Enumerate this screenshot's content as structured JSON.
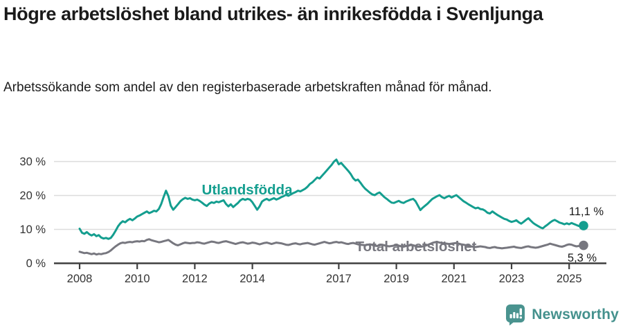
{
  "header": {
    "title": "Högre arbetslöshet bland utrikes- än inrikesfödda i Svenljunga",
    "subtitle": "Arbetssökande som andel av den registerbaserade arbetskraften månad för månad."
  },
  "footer": {
    "brand": "Newsworthy",
    "logo_icon": "newsworthy-speech-bubble-bar-chart-icon"
  },
  "colors": {
    "accent_teal": "#149e8f",
    "series_gray": "#77777f",
    "grid": "#dcdcdc",
    "axis": "#3f3f3f",
    "tick_text": "#333333",
    "end_label_text": "#1a1a1a",
    "logo_teal": "#4a938f"
  },
  "chart_data": {
    "type": "line",
    "title": "Högre arbetslöshet bland utrikes- än inrikesfödda i Svenljunga",
    "subtitle": "Arbetssökande som andel av den registerbaserade arbetskraften månad för månad.",
    "xlabel": "",
    "ylabel": "",
    "x_unit": "month",
    "x_start": "2008-01",
    "x_end": "2025-07",
    "frequency": "monthly",
    "ylim": [
      0,
      32
    ],
    "grid": "horizontal",
    "legend_position": "inline-labels",
    "y_ticks": [
      0,
      10,
      20,
      30
    ],
    "y_tick_labels": [
      "0 %",
      "10 %",
      "20 %",
      "30 %"
    ],
    "x_ticks": [
      2008,
      2010,
      2012,
      2014,
      2017,
      2019,
      2021,
      2023,
      2025
    ],
    "series": [
      {
        "id": "utlandsfodda",
        "name": "Utlandsfödda",
        "color": "#149e8f",
        "end_value": 11.1,
        "end_label": "11,1 %",
        "values": [
          10.2,
          9.0,
          8.7,
          9.2,
          8.6,
          8.2,
          8.6,
          8.0,
          8.3,
          7.6,
          7.3,
          7.5,
          7.2,
          7.5,
          8.4,
          9.6,
          10.9,
          11.8,
          12.4,
          12.1,
          12.7,
          13.1,
          12.7,
          13.2,
          13.8,
          14.1,
          14.5,
          14.9,
          15.3,
          14.8,
          15.1,
          15.5,
          15.3,
          16.0,
          17.5,
          19.5,
          21.4,
          19.8,
          17.0,
          15.8,
          16.6,
          17.4,
          18.3,
          18.9,
          19.3,
          19.0,
          19.2,
          18.8,
          18.6,
          18.8,
          18.4,
          17.9,
          17.3,
          16.9,
          17.6,
          18.0,
          17.8,
          18.2,
          18.0,
          18.3,
          18.6,
          17.5,
          16.8,
          17.4,
          16.6,
          17.2,
          17.8,
          18.6,
          19.0,
          18.7,
          19.0,
          18.8,
          18.0,
          16.9,
          15.8,
          16.8,
          18.2,
          18.7,
          19.0,
          18.6,
          18.9,
          19.2,
          18.8,
          19.1,
          19.5,
          19.8,
          20.2,
          19.9,
          20.3,
          20.7,
          21.0,
          21.4,
          21.2,
          21.6,
          22.0,
          22.6,
          23.4,
          23.9,
          24.6,
          25.3,
          25.0,
          25.8,
          26.6,
          27.4,
          28.2,
          29.0,
          30.0,
          30.6,
          29.2,
          29.6,
          28.8,
          28.0,
          27.2,
          26.3,
          25.1,
          24.4,
          24.7,
          23.8,
          22.8,
          22.0,
          21.4,
          20.8,
          20.3,
          20.1,
          20.6,
          20.9,
          20.2,
          19.5,
          19.0,
          18.4,
          17.9,
          17.8,
          18.1,
          18.4,
          18.0,
          17.8,
          18.2,
          18.5,
          18.8,
          19.0,
          18.3,
          17.0,
          15.7,
          16.4,
          17.0,
          17.6,
          18.3,
          19.0,
          19.4,
          19.8,
          20.1,
          19.5,
          19.2,
          19.6,
          19.9,
          19.4,
          19.8,
          20.1,
          19.5,
          18.9,
          18.3,
          17.9,
          17.4,
          17.0,
          16.6,
          16.2,
          16.4,
          16.0,
          15.9,
          15.5,
          14.9,
          14.7,
          15.3,
          14.8,
          14.3,
          13.9,
          13.5,
          13.1,
          12.9,
          12.5,
          12.2,
          12.4,
          12.7,
          12.1,
          11.7,
          12.2,
          12.8,
          13.3,
          12.6,
          11.9,
          11.4,
          11.0,
          10.6,
          10.3,
          10.9,
          11.4,
          12.0,
          12.5,
          12.8,
          12.4,
          12.0,
          11.8,
          11.5,
          11.8,
          11.5,
          11.9,
          11.6,
          11.3,
          11.0,
          11.2,
          11.1
        ]
      },
      {
        "id": "total",
        "name": "Total arbetslöshet",
        "color": "#77777f",
        "end_value": 5.3,
        "end_label": "5,3 %",
        "values": [
          3.4,
          3.2,
          3.0,
          3.1,
          2.9,
          2.7,
          2.9,
          2.6,
          2.8,
          2.7,
          2.9,
          3.0,
          3.3,
          3.8,
          4.4,
          5.0,
          5.5,
          5.9,
          6.1,
          6.0,
          6.2,
          6.3,
          6.2,
          6.4,
          6.5,
          6.4,
          6.6,
          6.5,
          6.9,
          7.1,
          6.8,
          6.6,
          6.4,
          6.2,
          6.3,
          6.5,
          6.7,
          6.9,
          6.4,
          5.9,
          5.5,
          5.3,
          5.6,
          5.9,
          6.1,
          6.0,
          5.9,
          6.0,
          6.0,
          6.2,
          6.1,
          5.9,
          5.8,
          6.0,
          6.2,
          6.4,
          6.3,
          6.1,
          6.0,
          6.2,
          6.4,
          6.5,
          6.3,
          6.1,
          5.9,
          5.7,
          5.9,
          6.1,
          6.2,
          6.0,
          5.8,
          5.9,
          6.1,
          6.0,
          5.8,
          5.6,
          5.8,
          6.0,
          6.1,
          5.9,
          5.7,
          5.9,
          6.1,
          6.0,
          5.9,
          5.7,
          5.5,
          5.4,
          5.6,
          5.8,
          5.9,
          5.7,
          5.6,
          5.8,
          5.9,
          6.0,
          5.8,
          5.6,
          5.5,
          5.7,
          5.9,
          6.1,
          6.3,
          6.1,
          5.9,
          6.0,
          6.2,
          6.3,
          6.1,
          6.2,
          6.0,
          5.8,
          5.7,
          5.9,
          6.0,
          5.8,
          5.6,
          5.5,
          5.4,
          5.3,
          5.5,
          5.6,
          5.4,
          5.2,
          5.1,
          5.3,
          5.5,
          5.3,
          5.1,
          5.0,
          5.1,
          5.2,
          5.3,
          5.2,
          5.0,
          4.9,
          5.1,
          5.2,
          5.4,
          5.3,
          5.1,
          5.0,
          4.9,
          5.0,
          5.2,
          5.4,
          5.7,
          6.0,
          6.2,
          6.3,
          6.1,
          6.0,
          5.9,
          5.8,
          5.7,
          5.8,
          5.9,
          6.0,
          5.8,
          5.6,
          5.5,
          5.3,
          5.2,
          5.0,
          4.9,
          4.8,
          4.9,
          5.0,
          4.9,
          4.8,
          4.6,
          4.5,
          4.7,
          4.8,
          4.6,
          4.5,
          4.4,
          4.5,
          4.6,
          4.7,
          4.8,
          4.9,
          4.7,
          4.6,
          4.5,
          4.7,
          4.9,
          5.0,
          4.8,
          4.7,
          4.6,
          4.7,
          4.9,
          5.1,
          5.3,
          5.5,
          5.8,
          5.6,
          5.4,
          5.2,
          5.0,
          4.9,
          5.1,
          5.4,
          5.6,
          5.5,
          5.2,
          5.0,
          5.1,
          5.2,
          5.3
        ]
      }
    ]
  }
}
